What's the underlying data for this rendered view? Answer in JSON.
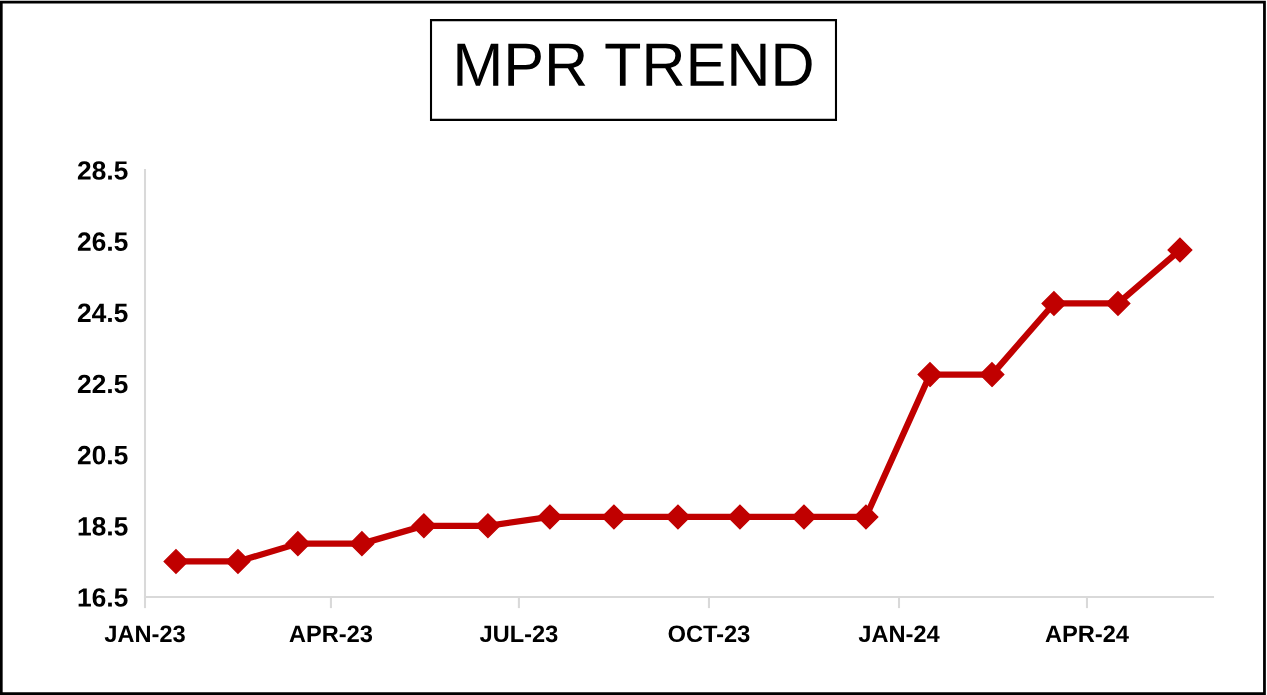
{
  "chart_data": {
    "type": "line",
    "title": "MPR TREND",
    "x": [
      "2023-01-16",
      "2023-02-15",
      "2023-03-16",
      "2023-04-16",
      "2023-05-16",
      "2023-06-16",
      "2023-07-16",
      "2023-08-16",
      "2023-09-16",
      "2023-10-16",
      "2023-11-16",
      "2023-12-16",
      "2024-01-16",
      "2024-02-15",
      "2024-03-16",
      "2024-04-16",
      "2024-05-16"
    ],
    "series": [
      {
        "color": "#c00000",
        "values": [
          17.5,
          17.5,
          18.0,
          18.0,
          18.5,
          18.5,
          18.75,
          18.75,
          18.75,
          18.75,
          18.75,
          18.75,
          22.75,
          22.75,
          24.75,
          24.75,
          26.25
        ]
      }
    ],
    "xlim": [
      "2023-01-01",
      "2024-06-01"
    ],
    "xticks": [
      {
        "value": "2023-01-01",
        "label": "JAN-23"
      },
      {
        "value": "2023-04-01",
        "label": "APR-23"
      },
      {
        "value": "2023-07-01",
        "label": "JUL-23"
      },
      {
        "value": "2023-10-01",
        "label": "OCT-23"
      },
      {
        "value": "2024-01-01",
        "label": "JAN-24"
      },
      {
        "value": "2024-04-01",
        "label": "APR-24"
      }
    ],
    "ylim": [
      16.5,
      28.5
    ],
    "yticks": [
      16.5,
      18.5,
      20.5,
      22.5,
      24.5,
      26.5,
      28.5
    ],
    "grid": false,
    "legend": false,
    "marker": "diamond",
    "line_style": "solid"
  }
}
